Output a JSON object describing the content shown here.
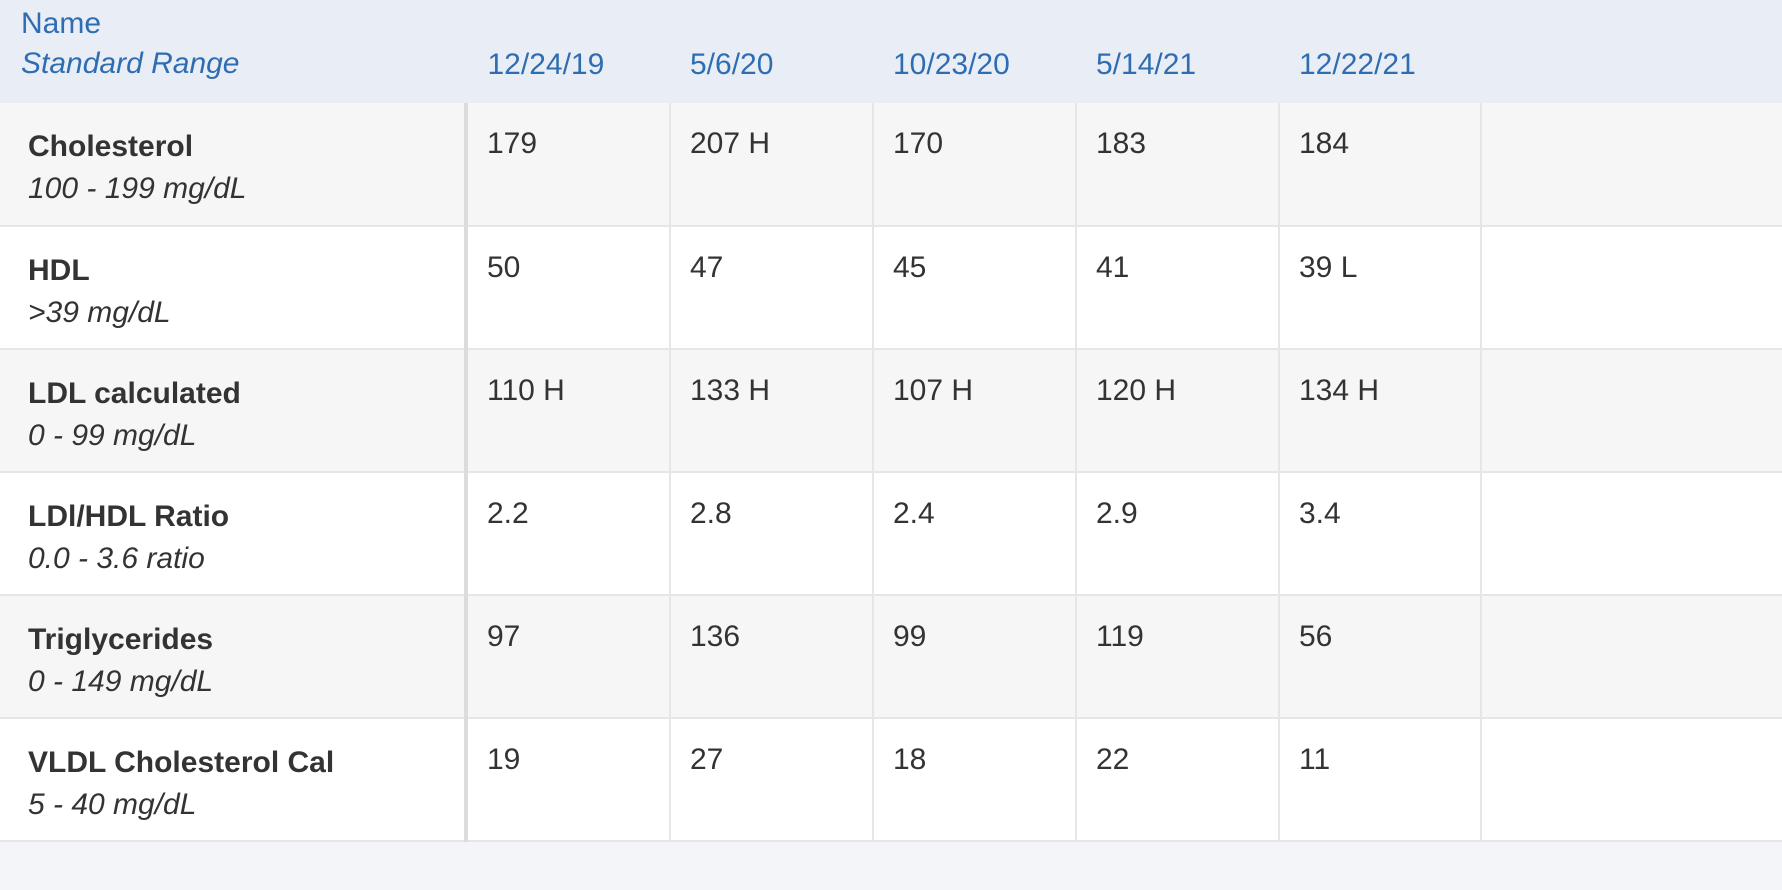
{
  "table": {
    "header": {
      "name": "Name",
      "range": "Standard Range",
      "dates": [
        "12/24/19",
        "5/6/20",
        "10/23/20",
        "5/14/21",
        "12/22/21"
      ]
    },
    "rows": [
      {
        "name": "Cholesterol",
        "range": "100 - 199 mg/dL",
        "values": [
          "179",
          "207 H",
          "170",
          "183",
          "184"
        ]
      },
      {
        "name": "HDL",
        "range": ">39 mg/dL",
        "values": [
          "50",
          "47",
          "45",
          "41",
          "39 L"
        ]
      },
      {
        "name": "LDL calculated",
        "range": "0 - 99 mg/dL",
        "values": [
          "110 H",
          "133 H",
          "107 H",
          "120 H",
          "134 H"
        ]
      },
      {
        "name": "LDl/HDL Ratio",
        "range": "0.0 - 3.6 ratio",
        "values": [
          "2.2",
          "2.8",
          "2.4",
          "2.9",
          "3.4"
        ]
      },
      {
        "name": "Triglycerides",
        "range": "0 - 149 mg/dL",
        "values": [
          "97",
          "136",
          "99",
          "119",
          "56"
        ]
      },
      {
        "name": "VLDL Cholesterol Cal",
        "range": "5 - 40 mg/dL",
        "values": [
          "19",
          "27",
          "18",
          "22",
          "11"
        ]
      }
    ]
  }
}
